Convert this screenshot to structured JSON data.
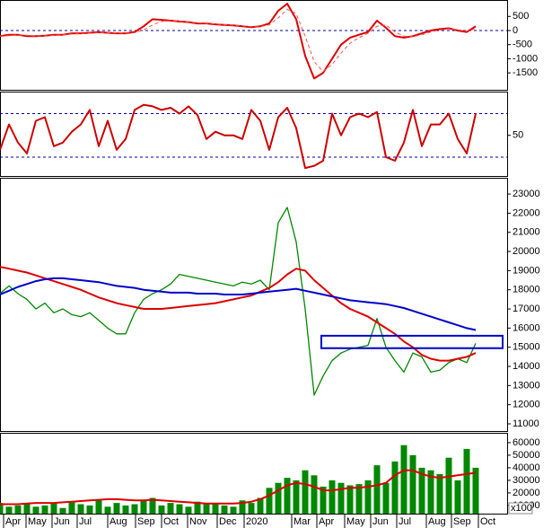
{
  "chart_data": [
    {
      "type": "line",
      "x": [
        0,
        1,
        2,
        3,
        4,
        5,
        6,
        7,
        8,
        9,
        10,
        11,
        12,
        13,
        14,
        15,
        16,
        17,
        18,
        19,
        20,
        21,
        22,
        23,
        24,
        25,
        26,
        27,
        28,
        29,
        30,
        31,
        32,
        33,
        34,
        35,
        36,
        37,
        38,
        39,
        40,
        41,
        42,
        43,
        44,
        45,
        46,
        47,
        48,
        49,
        50,
        51,
        52,
        53
      ],
      "xlim": [
        0,
        56.5
      ],
      "ylim": [
        -2100,
        1050
      ],
      "yticks": [
        500,
        0,
        -500,
        -1000,
        -1500
      ],
      "hlines": [
        0
      ],
      "series": [
        {
          "color": "#dd0000",
          "values": [
            -200,
            -150,
            -150,
            -200,
            -200,
            -180,
            -150,
            -150,
            -100,
            -100,
            -80,
            -60,
            -80,
            -100,
            -100,
            -50,
            150,
            400,
            380,
            350,
            320,
            300,
            250,
            250,
            220,
            200,
            180,
            150,
            120,
            150,
            250,
            700,
            950,
            400,
            -900,
            -1700,
            -1500,
            -1000,
            -500,
            -250,
            -150,
            -50,
            350,
            100,
            -200,
            -250,
            -200,
            -100,
            0,
            50,
            80,
            0,
            -50,
            150
          ]
        },
        {
          "color": "#ff5050",
          "dashed": true,
          "values": [
            -200,
            -180,
            -160,
            -170,
            -190,
            -190,
            -170,
            -155,
            -125,
            -110,
            -95,
            -75,
            -75,
            -90,
            -100,
            -80,
            20,
            200,
            320,
            350,
            335,
            310,
            275,
            255,
            235,
            210,
            190,
            165,
            135,
            140,
            200,
            450,
            750,
            600,
            -200,
            -1100,
            -1450,
            -1200,
            -800,
            -450,
            -250,
            -100,
            150,
            200,
            -50,
            -200,
            -220,
            -150,
            -50,
            20,
            60,
            30,
            -20,
            60
          ]
        }
      ]
    },
    {
      "type": "line",
      "x": [
        0,
        1,
        2,
        3,
        4,
        5,
        6,
        7,
        8,
        9,
        10,
        11,
        12,
        13,
        14,
        15,
        16,
        17,
        18,
        19,
        20,
        21,
        22,
        23,
        24,
        25,
        26,
        27,
        28,
        29,
        30,
        31,
        32,
        33,
        34,
        35,
        36,
        37,
        38,
        39,
        40,
        41,
        42,
        43,
        44,
        45,
        46,
        47,
        48,
        49,
        50,
        51,
        52,
        53
      ],
      "xlim": [
        0,
        56.5
      ],
      "ylim": [
        -6,
        109
      ],
      "yticks": [
        50
      ],
      "hlines": [
        80,
        20
      ],
      "series": [
        {
          "color": "#cc0000",
          "values": [
            30,
            65,
            40,
            25,
            70,
            75,
            35,
            40,
            55,
            65,
            85,
            35,
            70,
            30,
            45,
            85,
            92,
            90,
            85,
            88,
            80,
            90,
            78,
            45,
            55,
            50,
            50,
            45,
            85,
            70,
            30,
            75,
            88,
            60,
            5,
            8,
            15,
            80,
            50,
            75,
            80,
            75,
            82,
            20,
            15,
            40,
            85,
            35,
            65,
            65,
            80,
            45,
            25,
            80
          ]
        }
      ]
    },
    {
      "type": "line",
      "x": [
        0,
        1,
        2,
        3,
        4,
        5,
        6,
        7,
        8,
        9,
        10,
        11,
        12,
        13,
        14,
        15,
        16,
        17,
        18,
        19,
        20,
        21,
        22,
        23,
        24,
        25,
        26,
        27,
        28,
        29,
        30,
        31,
        32,
        33,
        34,
        35,
        36,
        37,
        38,
        39,
        40,
        41,
        42,
        43,
        44,
        45,
        46,
        47,
        48,
        49,
        50,
        51,
        52,
        53
      ],
      "xlim": [
        0,
        56.5
      ],
      "ylim": [
        10625,
        23800
      ],
      "yticks": [
        11000,
        12000,
        13000,
        14000,
        15000,
        16000,
        17000,
        18000,
        19000,
        20000,
        21000,
        22000,
        23000
      ],
      "box": {
        "x": [
          35.8,
          56
        ],
        "y": [
          14950,
          15600
        ],
        "color": "#0000cc"
      },
      "series": [
        {
          "color": "#008800",
          "values": [
            17800,
            18200,
            17800,
            17500,
            17000,
            17300,
            16800,
            17000,
            16700,
            16600,
            16800,
            16400,
            16000,
            15700,
            15700,
            16800,
            17500,
            17800,
            18000,
            18300,
            18800,
            18700,
            18600,
            18500,
            18400,
            18300,
            18200,
            18400,
            18300,
            18500,
            18000,
            21500,
            22300,
            20500,
            17000,
            12500,
            13500,
            14300,
            14700,
            14900,
            15000,
            15100,
            16500,
            15000,
            14300,
            13700,
            14700,
            14500,
            13700,
            13800,
            14200,
            14400,
            14200,
            15200
          ]
        },
        {
          "color": "#dd0000",
          "values": [
            19200,
            19100,
            19000,
            18900,
            18750,
            18600,
            18450,
            18300,
            18150,
            18000,
            17800,
            17600,
            17450,
            17300,
            17200,
            17100,
            17000,
            17000,
            17000,
            17050,
            17100,
            17150,
            17200,
            17250,
            17300,
            17400,
            17500,
            17600,
            17700,
            17900,
            18100,
            18400,
            18800,
            19100,
            19000,
            18500,
            18100,
            17700,
            17300,
            17000,
            16800,
            16600,
            16300,
            16000,
            15700,
            15300,
            15000,
            14600,
            14400,
            14300,
            14300,
            14400,
            14500,
            14700
          ]
        },
        {
          "color": "#0000cc",
          "values": [
            17750,
            17950,
            18150,
            18300,
            18450,
            18550,
            18600,
            18600,
            18550,
            18500,
            18450,
            18400,
            18300,
            18200,
            18150,
            18100,
            18000,
            17950,
            17900,
            17850,
            17850,
            17850,
            17800,
            17800,
            17800,
            17750,
            17750,
            17750,
            17800,
            17850,
            17900,
            17950,
            18000,
            18050,
            17950,
            17850,
            17750,
            17650,
            17550,
            17450,
            17400,
            17350,
            17300,
            17250,
            17150,
            17050,
            16900,
            16750,
            16600,
            16450,
            16300,
            16150,
            16000,
            15900
          ]
        }
      ]
    },
    {
      "type": "bar",
      "x": [
        0,
        1,
        2,
        3,
        4,
        5,
        6,
        7,
        8,
        9,
        10,
        11,
        12,
        13,
        14,
        15,
        16,
        17,
        18,
        19,
        20,
        21,
        22,
        23,
        24,
        25,
        26,
        27,
        28,
        29,
        30,
        31,
        32,
        33,
        34,
        35,
        36,
        37,
        38,
        39,
        40,
        41,
        42,
        43,
        44,
        45,
        46,
        47,
        48,
        49,
        50,
        51,
        52,
        53
      ],
      "xlim": [
        0,
        56.5
      ],
      "ylim": [
        3500,
        67100
      ],
      "yticks": [
        10000,
        20000,
        30000,
        40000,
        50000,
        60000
      ],
      "unit_label": "x100",
      "color": "#008800",
      "values": [
        12000,
        9000,
        10000,
        11000,
        9000,
        10000,
        12000,
        8000,
        13000,
        11000,
        10000,
        14000,
        9000,
        12000,
        10000,
        11000,
        14000,
        16000,
        10000,
        12000,
        11000,
        9000,
        13000,
        11000,
        12000,
        10000,
        9000,
        14000,
        12000,
        16000,
        24000,
        28000,
        32000,
        30000,
        38000,
        34000,
        25000,
        30000,
        28000,
        26000,
        27000,
        30000,
        42000,
        28000,
        45000,
        58000,
        50000,
        40000,
        38000,
        35000,
        48000,
        30000,
        55000,
        40000
      ],
      "series": [
        {
          "color": "#dd0000",
          "values": [
            11000,
            11000,
            11000,
            11500,
            12000,
            12000,
            12000,
            12500,
            13000,
            13500,
            14000,
            14500,
            15000,
            15000,
            14500,
            14000,
            14000,
            14500,
            14000,
            13500,
            13000,
            12500,
            12000,
            11500,
            11500,
            11500,
            11500,
            12000,
            13000,
            15000,
            18000,
            22000,
            26000,
            28000,
            27000,
            25000,
            22000,
            22000,
            23000,
            24000,
            24000,
            25000,
            26000,
            28000,
            34000,
            38000,
            38000,
            35000,
            33000,
            32000,
            33000,
            34000,
            35000,
            36000
          ]
        }
      ],
      "xticks": [
        {
          "value": 0.4,
          "label": "Apr"
        },
        {
          "value": 2.9,
          "label": "May"
        },
        {
          "value": 5.8,
          "label": "Jun"
        },
        {
          "value": 8.6,
          "label": "Jul"
        },
        {
          "value": 12.0,
          "label": "Aug"
        },
        {
          "value": 15.1,
          "label": "Sep"
        },
        {
          "value": 18.0,
          "label": "Oct"
        },
        {
          "value": 20.9,
          "label": "Nov"
        },
        {
          "value": 24.2,
          "label": "Dec"
        },
        {
          "value": 27.2,
          "label": "2020"
        },
        {
          "value": 32.5,
          "label": "Mar"
        },
        {
          "value": 35.3,
          "label": "Apr"
        },
        {
          "value": 38.4,
          "label": "May"
        },
        {
          "value": 41.3,
          "label": "Jun"
        },
        {
          "value": 44.2,
          "label": "Jul"
        },
        {
          "value": 47.5,
          "label": "Aug"
        },
        {
          "value": 50.3,
          "label": "Sep"
        },
        {
          "value": 53.3,
          "label": "Oct"
        }
      ]
    }
  ]
}
